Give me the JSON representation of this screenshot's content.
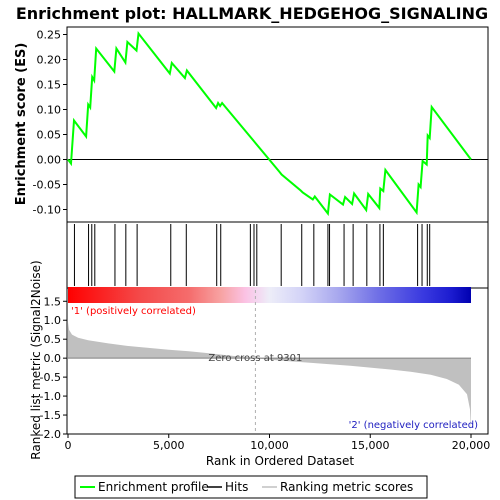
{
  "chart_data": {
    "type": "line",
    "title": "Enrichment plot: HALLMARK_HEDGEHOG_SIGNALING",
    "panels": {
      "enrichment": {
        "ylabel": "Enrichment score (ES)",
        "ylim": [
          -0.125,
          0.265
        ],
        "yticks": [
          -0.1,
          -0.05,
          0.0,
          0.05,
          0.1,
          0.15,
          0.2,
          0.25
        ],
        "ytick_labels": [
          "-0.10",
          "-0.05",
          "0.00",
          "0.05",
          "0.10",
          "0.15",
          "0.20",
          "0.25"
        ],
        "series_color": "#00ff00",
        "points": [
          [
            0,
            0.0
          ],
          [
            150,
            -0.008
          ],
          [
            300,
            0.078
          ],
          [
            900,
            0.046
          ],
          [
            1000,
            0.11
          ],
          [
            1100,
            0.104
          ],
          [
            1200,
            0.165
          ],
          [
            1300,
            0.158
          ],
          [
            1400,
            0.222
          ],
          [
            2300,
            0.176
          ],
          [
            2400,
            0.222
          ],
          [
            2850,
            0.194
          ],
          [
            2950,
            0.235
          ],
          [
            3400,
            0.218
          ],
          [
            3500,
            0.252
          ],
          [
            5050,
            0.172
          ],
          [
            5150,
            0.193
          ],
          [
            5800,
            0.163
          ],
          [
            5900,
            0.178
          ],
          [
            7350,
            0.103
          ],
          [
            7450,
            0.113
          ],
          [
            7550,
            0.107
          ],
          [
            7650,
            0.113
          ],
          [
            10500,
            -0.025
          ],
          [
            10600,
            -0.03
          ],
          [
            11550,
            -0.062
          ],
          [
            11650,
            -0.066
          ],
          [
            12150,
            -0.08
          ],
          [
            12250,
            -0.074
          ],
          [
            12900,
            -0.108
          ],
          [
            13000,
            -0.07
          ],
          [
            13650,
            -0.09
          ],
          [
            13750,
            -0.075
          ],
          [
            14100,
            -0.089
          ],
          [
            14200,
            -0.068
          ],
          [
            14800,
            -0.101
          ],
          [
            14900,
            -0.069
          ],
          [
            15450,
            -0.097
          ],
          [
            15500,
            -0.058
          ],
          [
            15650,
            -0.063
          ],
          [
            15750,
            -0.021
          ],
          [
            17300,
            -0.106
          ],
          [
            17400,
            -0.05
          ],
          [
            17500,
            -0.055
          ],
          [
            17600,
            -0.003
          ],
          [
            17800,
            -0.01
          ],
          [
            17850,
            0.048
          ],
          [
            17950,
            0.043
          ],
          [
            18050,
            0.105
          ],
          [
            20000,
            0.0
          ]
        ]
      },
      "hits": [
        320,
        1020,
        1180,
        1330,
        2330,
        2870,
        3430,
        5100,
        5870,
        7380,
        7580,
        9050,
        9230,
        9370,
        10580,
        11600,
        12200,
        12900,
        12980,
        13700,
        14150,
        14830,
        15480,
        15650,
        17350,
        17570,
        17830,
        17950
      ],
      "ranked_metric": {
        "ylabel": "Ranked list metric (Signal2Noise)",
        "xlabel": "Rank in Ordered Dataset",
        "ylim": [
          -2.0,
          1.85
        ],
        "yticks": [
          -2.0,
          -1.5,
          -1.0,
          -0.5,
          0.0,
          0.5,
          1.0,
          1.5
        ],
        "ytick_labels": [
          "-2.0",
          "-1.5",
          "-1.0",
          "-0.5",
          "0.0",
          "0.5",
          "1.0",
          "1.5"
        ],
        "xlim": [
          0,
          20000
        ],
        "xticks": [
          0,
          5000,
          10000,
          15000,
          20000
        ],
        "xtick_labels": [
          "0",
          "5,000",
          "10,000",
          "15,000",
          "20,000"
        ],
        "profile": [
          [
            0,
            0.95
          ],
          [
            50,
            0.75
          ],
          [
            200,
            0.62
          ],
          [
            500,
            0.54
          ],
          [
            1000,
            0.47
          ],
          [
            2000,
            0.39
          ],
          [
            3000,
            0.32
          ],
          [
            4000,
            0.27
          ],
          [
            5000,
            0.22
          ],
          [
            6000,
            0.18
          ],
          [
            7000,
            0.13
          ],
          [
            8000,
            0.07
          ],
          [
            9301,
            0.0
          ],
          [
            10000,
            -0.04
          ],
          [
            11000,
            -0.08
          ],
          [
            12000,
            -0.12
          ],
          [
            13000,
            -0.16
          ],
          [
            14000,
            -0.2
          ],
          [
            15000,
            -0.25
          ],
          [
            16000,
            -0.3
          ],
          [
            17000,
            -0.36
          ],
          [
            18000,
            -0.44
          ],
          [
            18800,
            -0.55
          ],
          [
            19400,
            -0.7
          ],
          [
            19800,
            -0.95
          ],
          [
            19950,
            -1.35
          ],
          [
            20000,
            -1.95
          ]
        ],
        "zero_cross_label": "Zero cross at 9301",
        "zero_cross": 9301,
        "pos_label": "'1' (positively correlated)",
        "neg_label": "'2' (negatively correlated)"
      }
    },
    "legend": {
      "placement": "bottom",
      "items": [
        {
          "label": "Enrichment profile",
          "color": "#00ff00"
        },
        {
          "label": "Hits",
          "color": "#000000"
        },
        {
          "label": "Ranking metric scores",
          "color": "#c0c0c0"
        }
      ]
    }
  }
}
